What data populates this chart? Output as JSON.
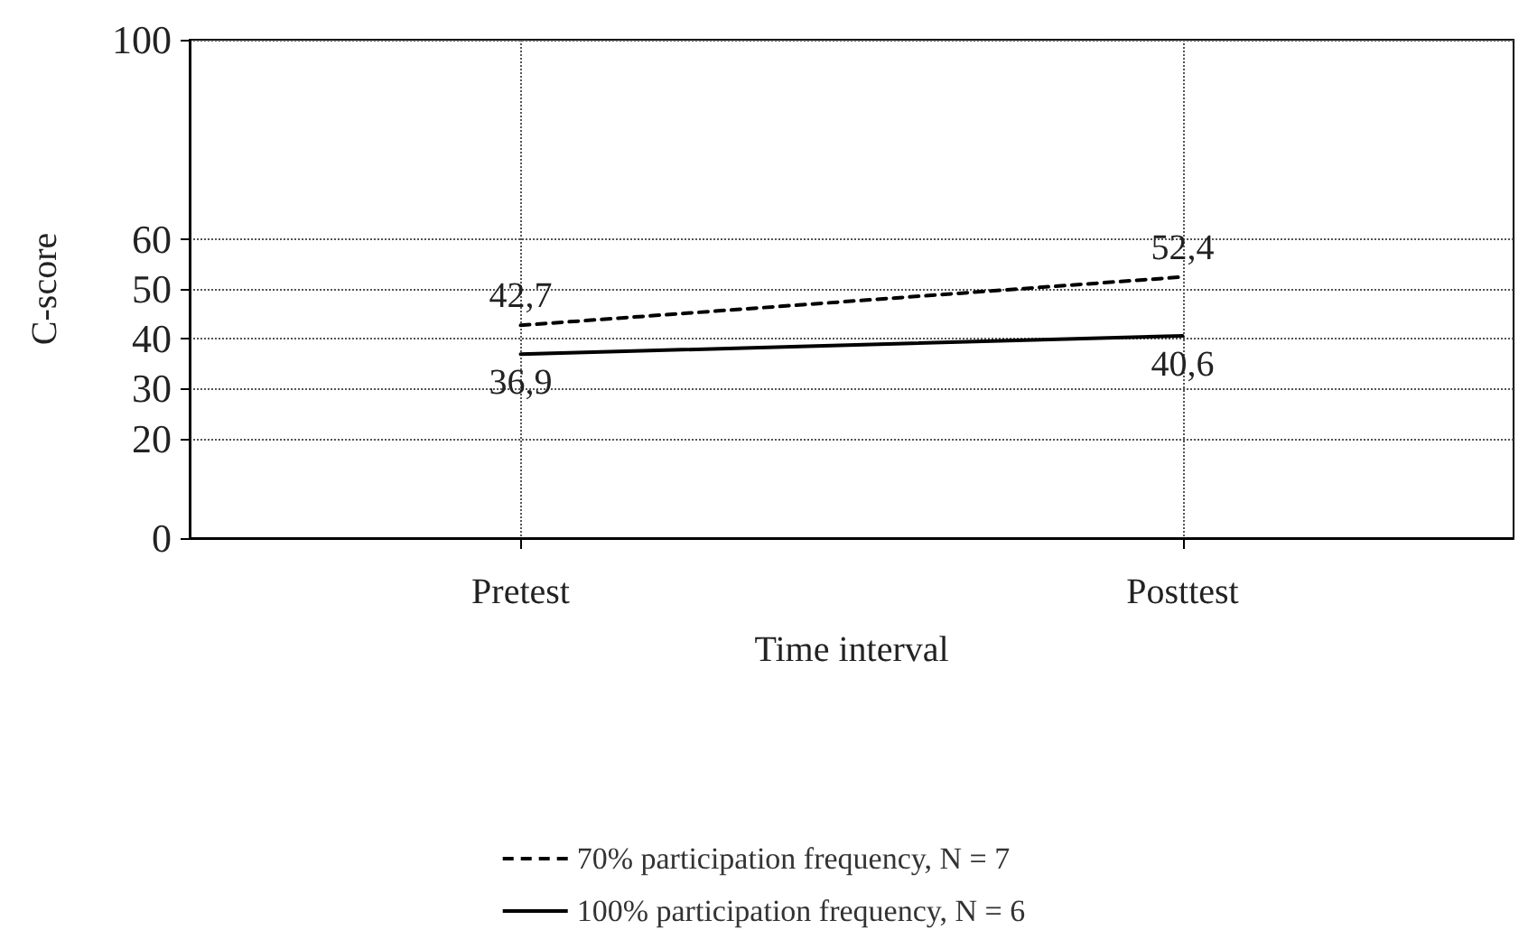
{
  "chart_data": {
    "type": "line",
    "xlabel": "Time interval",
    "ylabel": "C-score",
    "categories": [
      "Pretest",
      "Posttest"
    ],
    "ylim": [
      0,
      100
    ],
    "yticks": [
      0,
      20,
      30,
      40,
      50,
      60,
      100
    ],
    "series": [
      {
        "name": "70% participation frequency, N = 7",
        "color": "#000000",
        "line_style": "dashed",
        "values": [
          42.7,
          52.4
        ],
        "value_labels": [
          "42,7",
          "52,4"
        ]
      },
      {
        "name": "100% participation frequency, N = 6",
        "color": "#000000",
        "line_style": "solid",
        "values": [
          36.9,
          40.6
        ],
        "value_labels": [
          "36,9",
          "40,6"
        ]
      }
    ],
    "grid": true,
    "legend": "bottom",
    "marker": "none"
  }
}
